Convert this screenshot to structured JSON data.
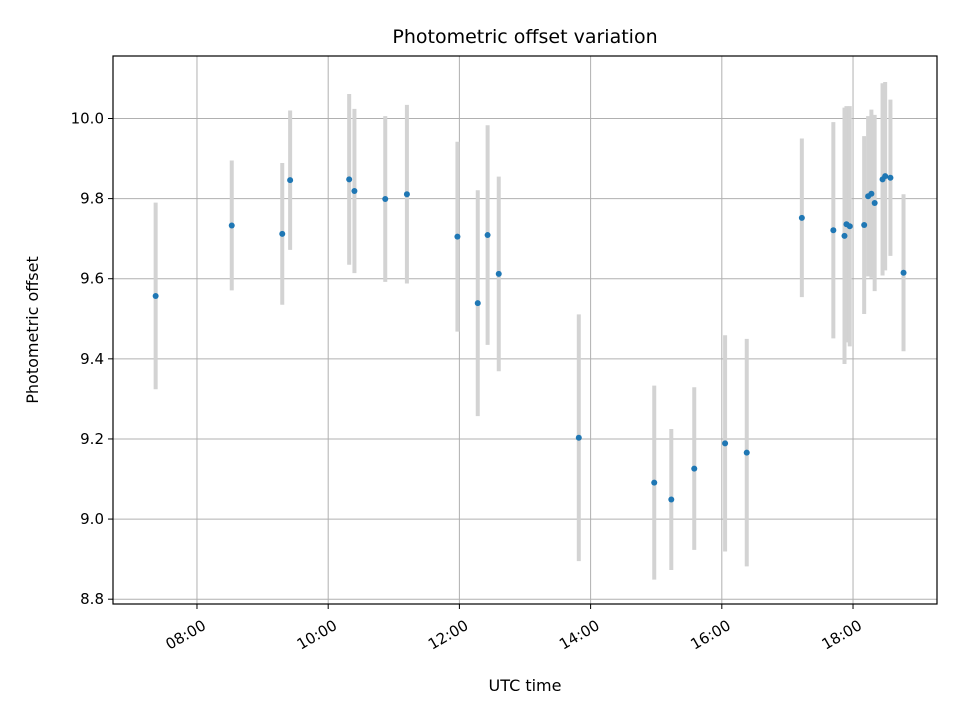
{
  "chart_data": {
    "type": "scatter",
    "title": "Photometric offset variation",
    "xlabel": "UTC time",
    "ylabel": "Photometric offset",
    "x_unit": "hours UTC",
    "xlim": [
      6.72,
      19.28
    ],
    "ylim": [
      8.788,
      10.156
    ],
    "x_ticks": [
      8,
      10,
      12,
      14,
      16,
      18
    ],
    "x_tick_labels": [
      "08:00",
      "10:00",
      "12:00",
      "14:00",
      "16:00",
      "18:00"
    ],
    "y_ticks": [
      8.8,
      9.0,
      9.2,
      9.4,
      9.6,
      9.8,
      10.0
    ],
    "y_tick_labels": [
      "8.8",
      "9.0",
      "9.2",
      "9.4",
      "9.6",
      "9.8",
      "10.0"
    ],
    "grid": true,
    "marker_color": "#1f77b4",
    "errorbar_color": "#d3d3d3",
    "points": [
      {
        "x": 7.37,
        "y": 9.557,
        "yerr": 0.233
      },
      {
        "x": 8.53,
        "y": 9.733,
        "yerr": 0.162
      },
      {
        "x": 9.3,
        "y": 9.712,
        "yerr": 0.177
      },
      {
        "x": 9.42,
        "y": 9.846,
        "yerr": 0.174
      },
      {
        "x": 10.32,
        "y": 9.848,
        "yerr": 0.213
      },
      {
        "x": 10.4,
        "y": 9.819,
        "yerr": 0.205
      },
      {
        "x": 10.87,
        "y": 9.799,
        "yerr": 0.207
      },
      {
        "x": 11.2,
        "y": 9.811,
        "yerr": 0.223
      },
      {
        "x": 11.97,
        "y": 9.705,
        "yerr": 0.237
      },
      {
        "x": 12.28,
        "y": 9.539,
        "yerr": 0.282
      },
      {
        "x": 12.43,
        "y": 9.709,
        "yerr": 0.274
      },
      {
        "x": 12.6,
        "y": 9.612,
        "yerr": 0.243
      },
      {
        "x": 13.82,
        "y": 9.203,
        "yerr": 0.308
      },
      {
        "x": 14.97,
        "y": 9.091,
        "yerr": 0.242
      },
      {
        "x": 15.23,
        "y": 9.049,
        "yerr": 0.176
      },
      {
        "x": 15.58,
        "y": 9.126,
        "yerr": 0.203
      },
      {
        "x": 16.05,
        "y": 9.189,
        "yerr": 0.27
      },
      {
        "x": 16.38,
        "y": 9.166,
        "yerr": 0.284
      },
      {
        "x": 17.22,
        "y": 9.752,
        "yerr": 0.198
      },
      {
        "x": 17.7,
        "y": 9.721,
        "yerr": 0.27
      },
      {
        "x": 17.87,
        "y": 9.707,
        "yerr": 0.32
      },
      {
        "x": 17.9,
        "y": 9.736,
        "yerr": 0.295
      },
      {
        "x": 17.95,
        "y": 9.731,
        "yerr": 0.3
      },
      {
        "x": 18.17,
        "y": 9.734,
        "yerr": 0.222
      },
      {
        "x": 18.23,
        "y": 9.806,
        "yerr": 0.2
      },
      {
        "x": 18.28,
        "y": 9.812,
        "yerr": 0.21
      },
      {
        "x": 18.33,
        "y": 9.789,
        "yerr": 0.22
      },
      {
        "x": 18.45,
        "y": 9.848,
        "yerr": 0.24
      },
      {
        "x": 18.49,
        "y": 9.856,
        "yerr": 0.235
      },
      {
        "x": 18.57,
        "y": 9.852,
        "yerr": 0.195
      },
      {
        "x": 18.77,
        "y": 9.615,
        "yerr": 0.196
      }
    ]
  }
}
